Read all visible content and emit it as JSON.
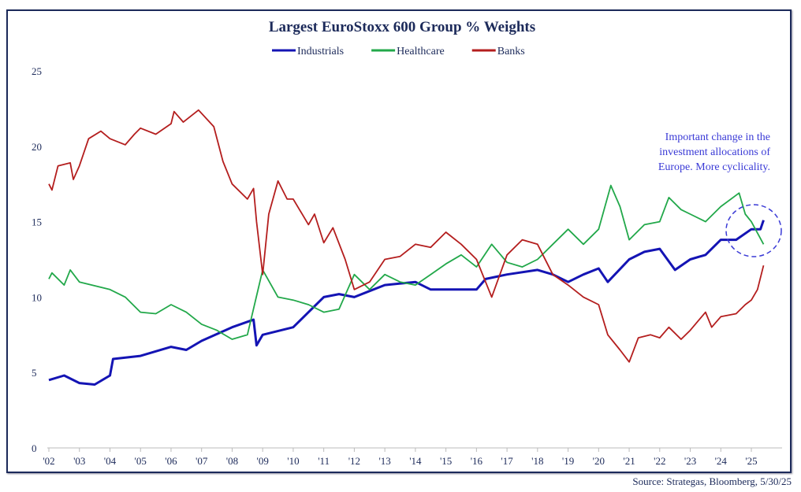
{
  "chart_data": {
    "type": "line",
    "title": "Largest EuroStoxx 600 Group % Weights",
    "xlabel": "",
    "ylabel": "",
    "ylim": [
      0,
      25
    ],
    "xlim": [
      2002,
      2025.9
    ],
    "yticks": [
      0,
      5,
      10,
      15,
      20,
      25
    ],
    "xtick_labels": [
      "'02",
      "'03",
      "'04",
      "'05",
      "'06",
      "'07",
      "'08",
      "'09",
      "'10",
      "'11",
      "'12",
      "'13",
      "'14",
      "'15",
      "'16",
      "'17",
      "'18",
      "'19",
      "'20",
      "'21",
      "'22",
      "'23",
      "'24",
      "'25"
    ],
    "legend_placement": "top-center",
    "grid": false,
    "series": [
      {
        "name": "Industrials",
        "color": "#1414b4",
        "points": [
          [
            2002,
            4.5
          ],
          [
            2002.5,
            4.8
          ],
          [
            2003,
            4.3
          ],
          [
            2003.5,
            4.2
          ],
          [
            2004,
            4.8
          ],
          [
            2004.1,
            5.9
          ],
          [
            2005,
            6.1
          ],
          [
            2006,
            6.7
          ],
          [
            2006.5,
            6.5
          ],
          [
            2007,
            7.1
          ],
          [
            2008,
            8.0
          ],
          [
            2008.7,
            8.5
          ],
          [
            2008.8,
            6.8
          ],
          [
            2009,
            7.5
          ],
          [
            2010,
            8.0
          ],
          [
            2010.5,
            9.0
          ],
          [
            2011,
            10.0
          ],
          [
            2011.5,
            10.2
          ],
          [
            2012,
            10.0
          ],
          [
            2012.5,
            10.4
          ],
          [
            2013,
            10.8
          ],
          [
            2014,
            11.0
          ],
          [
            2014.5,
            10.5
          ],
          [
            2015,
            10.5
          ],
          [
            2016,
            10.5
          ],
          [
            2016.3,
            11.2
          ],
          [
            2017,
            11.5
          ],
          [
            2018,
            11.8
          ],
          [
            2018.5,
            11.5
          ],
          [
            2019,
            11.0
          ],
          [
            2019.5,
            11.5
          ],
          [
            2020,
            11.9
          ],
          [
            2020.3,
            11.0
          ],
          [
            2021,
            12.5
          ],
          [
            2021.5,
            13.0
          ],
          [
            2022,
            13.2
          ],
          [
            2022.5,
            11.8
          ],
          [
            2023,
            12.5
          ],
          [
            2023.5,
            12.8
          ],
          [
            2024,
            13.8
          ],
          [
            2024.5,
            13.8
          ],
          [
            2025,
            14.5
          ],
          [
            2025.3,
            14.5
          ],
          [
            2025.4,
            15.1
          ]
        ]
      },
      {
        "name": "Healthcare",
        "color": "#22a84a",
        "points": [
          [
            2002,
            11.2
          ],
          [
            2002.1,
            11.6
          ],
          [
            2002.5,
            10.8
          ],
          [
            2002.7,
            11.8
          ],
          [
            2003,
            11.0
          ],
          [
            2004,
            10.5
          ],
          [
            2004.5,
            10.0
          ],
          [
            2005,
            9.0
          ],
          [
            2005.5,
            8.9
          ],
          [
            2006,
            9.5
          ],
          [
            2006.5,
            9.0
          ],
          [
            2007,
            8.2
          ],
          [
            2007.5,
            7.8
          ],
          [
            2008,
            7.2
          ],
          [
            2008.5,
            7.5
          ],
          [
            2009,
            11.8
          ],
          [
            2009.5,
            10.0
          ],
          [
            2010,
            9.8
          ],
          [
            2010.5,
            9.5
          ],
          [
            2011,
            9.0
          ],
          [
            2011.5,
            9.2
          ],
          [
            2012,
            11.5
          ],
          [
            2012.5,
            10.5
          ],
          [
            2013,
            11.5
          ],
          [
            2013.5,
            11.0
          ],
          [
            2014,
            10.8
          ],
          [
            2014.5,
            11.5
          ],
          [
            2015,
            12.2
          ],
          [
            2015.5,
            12.8
          ],
          [
            2016,
            12.0
          ],
          [
            2016.5,
            13.5
          ],
          [
            2017,
            12.3
          ],
          [
            2017.5,
            12.0
          ],
          [
            2018,
            12.5
          ],
          [
            2018.5,
            13.5
          ],
          [
            2019,
            14.5
          ],
          [
            2019.5,
            13.5
          ],
          [
            2020,
            14.5
          ],
          [
            2020.4,
            17.4
          ],
          [
            2020.7,
            16.0
          ],
          [
            2021,
            13.8
          ],
          [
            2021.5,
            14.8
          ],
          [
            2022,
            15.0
          ],
          [
            2022.3,
            16.6
          ],
          [
            2022.7,
            15.8
          ],
          [
            2023,
            15.5
          ],
          [
            2023.5,
            15.0
          ],
          [
            2024,
            16.0
          ],
          [
            2024.6,
            16.9
          ],
          [
            2024.8,
            15.5
          ],
          [
            2025,
            15.0
          ],
          [
            2025.4,
            13.5
          ]
        ]
      },
      {
        "name": "Banks",
        "color": "#b41e1e",
        "points": [
          [
            2002,
            17.5
          ],
          [
            2002.1,
            17.1
          ],
          [
            2002.3,
            18.7
          ],
          [
            2002.7,
            18.9
          ],
          [
            2002.8,
            17.8
          ],
          [
            2003,
            18.7
          ],
          [
            2003.3,
            20.5
          ],
          [
            2003.7,
            21.0
          ],
          [
            2004,
            20.5
          ],
          [
            2004.5,
            20.1
          ],
          [
            2004.8,
            20.8
          ],
          [
            2005,
            21.2
          ],
          [
            2005.5,
            20.8
          ],
          [
            2006,
            21.5
          ],
          [
            2006.1,
            22.3
          ],
          [
            2006.4,
            21.6
          ],
          [
            2006.9,
            22.4
          ],
          [
            2007.4,
            21.3
          ],
          [
            2007.7,
            19.0
          ],
          [
            2008,
            17.5
          ],
          [
            2008.5,
            16.5
          ],
          [
            2008.7,
            17.2
          ],
          [
            2008.8,
            15.0
          ],
          [
            2009,
            11.5
          ],
          [
            2009.2,
            15.5
          ],
          [
            2009.5,
            17.7
          ],
          [
            2009.8,
            16.5
          ],
          [
            2010,
            16.5
          ],
          [
            2010.5,
            14.8
          ],
          [
            2010.7,
            15.5
          ],
          [
            2011,
            13.6
          ],
          [
            2011.3,
            14.6
          ],
          [
            2011.7,
            12.5
          ],
          [
            2012,
            10.5
          ],
          [
            2012.5,
            11.0
          ],
          [
            2013,
            12.5
          ],
          [
            2013.5,
            12.7
          ],
          [
            2014,
            13.5
          ],
          [
            2014.5,
            13.3
          ],
          [
            2015,
            14.3
          ],
          [
            2015.5,
            13.5
          ],
          [
            2016,
            12.5
          ],
          [
            2016.5,
            10.0
          ],
          [
            2017,
            12.8
          ],
          [
            2017.5,
            13.8
          ],
          [
            2018,
            13.5
          ],
          [
            2018.5,
            11.5
          ],
          [
            2019,
            10.8
          ],
          [
            2019.5,
            10.0
          ],
          [
            2020,
            9.5
          ],
          [
            2020.3,
            7.5
          ],
          [
            2020.7,
            6.5
          ],
          [
            2021,
            5.7
          ],
          [
            2021.3,
            7.3
          ],
          [
            2021.7,
            7.5
          ],
          [
            2022,
            7.3
          ],
          [
            2022.3,
            8.0
          ],
          [
            2022.7,
            7.2
          ],
          [
            2023,
            7.8
          ],
          [
            2023.5,
            9.0
          ],
          [
            2023.7,
            8.0
          ],
          [
            2024,
            8.7
          ],
          [
            2024.5,
            8.9
          ],
          [
            2024.8,
            9.5
          ],
          [
            2025,
            9.8
          ],
          [
            2025.2,
            10.5
          ],
          [
            2025.4,
            12.1
          ]
        ]
      }
    ],
    "annotation": {
      "lines": [
        "Important change in the",
        "investment allocations of",
        "Europe. More cyclicality."
      ],
      "color": "#3a3ad6",
      "highlight": "dashed circle around 2025 Industrials/Healthcare crossover"
    }
  },
  "source": "Source: Strategas, Bloomberg, 5/30/25"
}
